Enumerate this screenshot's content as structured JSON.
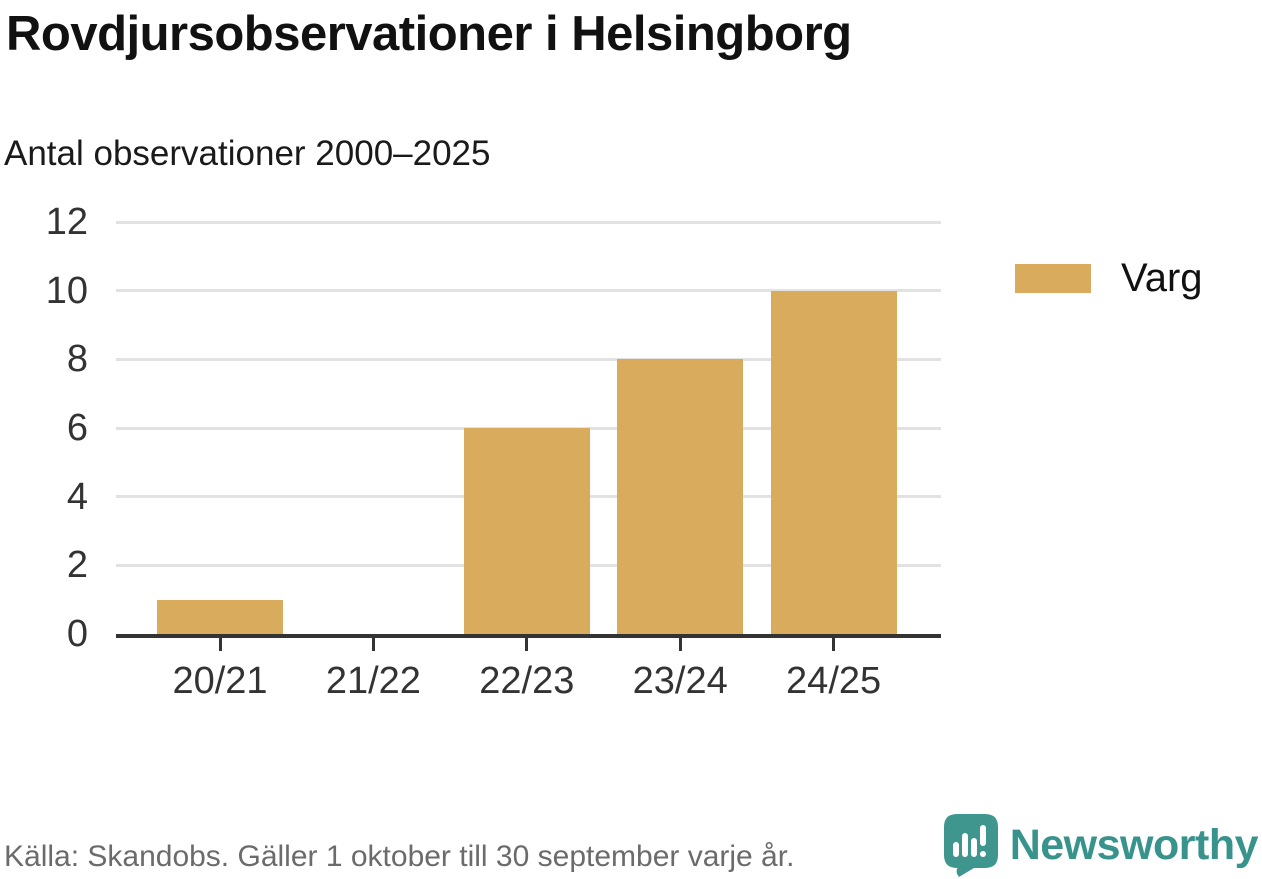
{
  "header": {
    "title": "Rovdjursobservationer i Helsingborg",
    "subtitle": "Antal observationer 2000–2025"
  },
  "legend": {
    "label": "Varg",
    "swatch_color": "#d9ac5d"
  },
  "footer": {
    "source": "Källa: Skandobs. Gäller 1 oktober till 30 september varje år.",
    "brand_name": "Newsworthy",
    "brand_color": "#39938d",
    "icon_color": "#3e968f"
  },
  "chart_data": {
    "type": "bar",
    "title": "Rovdjursobservationer i Helsingborg",
    "subtitle": "Antal observationer 2000–2025",
    "categories": [
      "20/21",
      "21/22",
      "22/23",
      "23/24",
      "24/25"
    ],
    "series": [
      {
        "name": "Varg",
        "values": [
          1,
          0,
          6,
          8,
          10
        ]
      }
    ],
    "xlabel": "",
    "ylabel": "",
    "ylim": [
      0,
      12
    ],
    "yticks": [
      0,
      2,
      4,
      6,
      8,
      10,
      12
    ],
    "grid": true,
    "legend_position": "right",
    "bar_color": "#d9ac5d",
    "gridline_color": "#e2e2e2",
    "axis_color": "#333333"
  }
}
